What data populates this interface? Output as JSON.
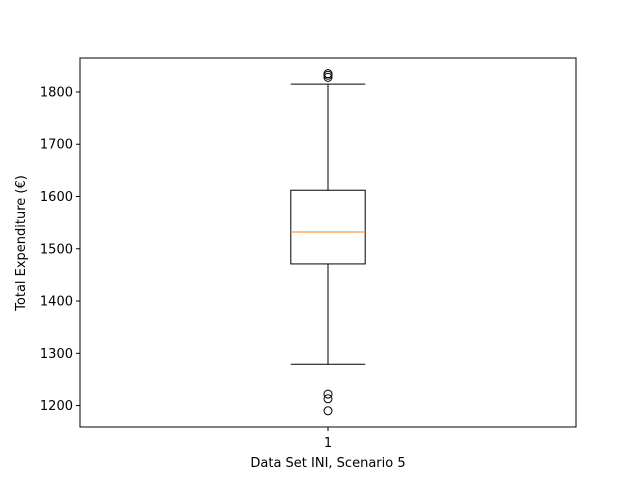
{
  "chart_data": {
    "type": "box",
    "title": "",
    "xlabel": "Data Set INI, Scenario 5",
    "ylabel": "Total Expenditure (€)",
    "ylim": [
      1159,
      1865
    ],
    "yticks": [
      1200,
      1300,
      1400,
      1500,
      1600,
      1700,
      1800
    ],
    "categories": [
      "1"
    ],
    "boxes": [
      {
        "category": "1",
        "whisker_low": 1279,
        "q1": 1471,
        "median": 1532,
        "q3": 1612,
        "whisker_high": 1815,
        "outliers": [
          1190,
          1213,
          1222,
          1828,
          1832,
          1835
        ]
      }
    ],
    "grid": false,
    "legend": "none",
    "colors": {
      "box": "#000000",
      "median": "#ff7f0e",
      "background": "#ffffff"
    }
  }
}
